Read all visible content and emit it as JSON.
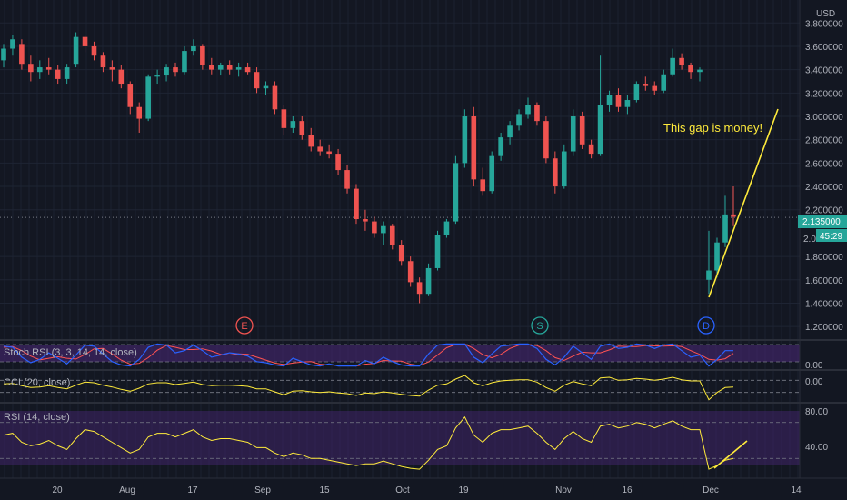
{
  "chart_data": {
    "type": "candlestick",
    "currency_label": "USD",
    "last_price_label": "2.135000",
    "countdown_label": "45:29",
    "partial_label": "2.0",
    "annotation": "This gap is money!",
    "colors": {
      "up": "#26a69a",
      "down": "#ef5350",
      "yellow": "#ffeb3b",
      "stoch_k": "#2962ff",
      "stoch_d": "#ff5252",
      "band_fill": "#4a2878",
      "background": "#131722"
    },
    "price_axis": {
      "ylim": [
        1.1,
        3.95
      ],
      "ticks": [
        "3.800000",
        "3.600000",
        "3.400000",
        "3.200000",
        "3.000000",
        "2.800000",
        "2.600000",
        "2.400000",
        "2.200000",
        "1.800000",
        "1.600000",
        "1.400000",
        "1.200000"
      ]
    },
    "x_axis": {
      "labels": [
        "20",
        "Aug",
        "17",
        "Sep",
        "15",
        "Oct",
        "19",
        "Nov",
        "16",
        "Dec",
        "14"
      ]
    },
    "event_markers": [
      "E",
      "S",
      "D"
    ],
    "ohlc": [
      [
        3.48,
        3.62,
        3.42,
        3.58
      ],
      [
        3.58,
        3.7,
        3.52,
        3.66
      ],
      [
        3.62,
        3.66,
        3.4,
        3.45
      ],
      [
        3.45,
        3.52,
        3.3,
        3.38
      ],
      [
        3.38,
        3.48,
        3.32,
        3.42
      ],
      [
        3.42,
        3.5,
        3.36,
        3.4
      ],
      [
        3.4,
        3.44,
        3.28,
        3.32
      ],
      [
        3.32,
        3.45,
        3.28,
        3.42
      ],
      [
        3.45,
        3.72,
        3.42,
        3.68
      ],
      [
        3.68,
        3.7,
        3.55,
        3.6
      ],
      [
        3.6,
        3.64,
        3.48,
        3.52
      ],
      [
        3.52,
        3.55,
        3.38,
        3.42
      ],
      [
        3.42,
        3.48,
        3.3,
        3.4
      ],
      [
        3.4,
        3.44,
        3.24,
        3.28
      ],
      [
        3.28,
        3.3,
        3.02,
        3.08
      ],
      [
        3.08,
        3.12,
        2.86,
        2.98
      ],
      [
        2.98,
        3.36,
        2.96,
        3.34
      ],
      [
        3.34,
        3.4,
        3.28,
        3.35
      ],
      [
        3.35,
        3.45,
        3.3,
        3.42
      ],
      [
        3.42,
        3.46,
        3.34,
        3.38
      ],
      [
        3.38,
        3.6,
        3.36,
        3.56
      ],
      [
        3.56,
        3.66,
        3.52,
        3.6
      ],
      [
        3.6,
        3.62,
        3.4,
        3.44
      ],
      [
        3.44,
        3.5,
        3.36,
        3.4
      ],
      [
        3.4,
        3.46,
        3.35,
        3.44
      ],
      [
        3.44,
        3.48,
        3.36,
        3.4
      ],
      [
        3.4,
        3.46,
        3.34,
        3.42
      ],
      [
        3.42,
        3.46,
        3.36,
        3.38
      ],
      [
        3.38,
        3.42,
        3.2,
        3.24
      ],
      [
        3.24,
        3.3,
        3.18,
        3.26
      ],
      [
        3.26,
        3.3,
        3.02,
        3.06
      ],
      [
        3.06,
        3.1,
        2.84,
        2.9
      ],
      [
        2.9,
        3.0,
        2.86,
        2.96
      ],
      [
        2.96,
        3.0,
        2.8,
        2.84
      ],
      [
        2.84,
        2.9,
        2.7,
        2.74
      ],
      [
        2.74,
        2.8,
        2.66,
        2.7
      ],
      [
        2.7,
        2.76,
        2.64,
        2.68
      ],
      [
        2.68,
        2.72,
        2.5,
        2.54
      ],
      [
        2.54,
        2.58,
        2.34,
        2.38
      ],
      [
        2.38,
        2.42,
        2.08,
        2.12
      ],
      [
        2.12,
        2.2,
        2.02,
        2.1
      ],
      [
        2.1,
        2.14,
        1.96,
        2.0
      ],
      [
        2.0,
        2.1,
        1.9,
        2.06
      ],
      [
        2.06,
        2.08,
        1.86,
        1.9
      ],
      [
        1.9,
        1.94,
        1.72,
        1.76
      ],
      [
        1.76,
        1.8,
        1.54,
        1.58
      ],
      [
        1.58,
        1.62,
        1.4,
        1.48
      ],
      [
        1.48,
        1.74,
        1.46,
        1.7
      ],
      [
        1.7,
        2.02,
        1.68,
        1.98
      ],
      [
        1.98,
        2.12,
        1.96,
        2.1
      ],
      [
        2.1,
        2.66,
        2.08,
        2.6
      ],
      [
        2.6,
        3.06,
        2.56,
        3.0
      ],
      [
        3.0,
        3.08,
        2.4,
        2.46
      ],
      [
        2.46,
        2.56,
        2.32,
        2.36
      ],
      [
        2.36,
        2.7,
        2.34,
        2.66
      ],
      [
        2.66,
        2.86,
        2.62,
        2.82
      ],
      [
        2.82,
        2.96,
        2.76,
        2.92
      ],
      [
        2.92,
        3.06,
        2.88,
        3.02
      ],
      [
        3.02,
        3.16,
        2.98,
        3.1
      ],
      [
        3.1,
        3.12,
        2.92,
        2.96
      ],
      [
        2.96,
        3.0,
        2.6,
        2.64
      ],
      [
        2.64,
        2.7,
        2.34,
        2.4
      ],
      [
        2.4,
        2.76,
        2.38,
        2.7
      ],
      [
        2.7,
        3.06,
        2.66,
        3.0
      ],
      [
        3.0,
        3.04,
        2.72,
        2.76
      ],
      [
        2.76,
        2.8,
        2.64,
        2.68
      ],
      [
        2.68,
        3.52,
        2.66,
        3.1
      ],
      [
        3.1,
        3.22,
        3.04,
        3.18
      ],
      [
        3.18,
        3.24,
        3.04,
        3.08
      ],
      [
        3.08,
        3.18,
        3.02,
        3.14
      ],
      [
        3.14,
        3.3,
        3.12,
        3.28
      ],
      [
        3.28,
        3.34,
        3.22,
        3.26
      ],
      [
        3.26,
        3.3,
        3.18,
        3.22
      ],
      [
        3.22,
        3.4,
        3.2,
        3.36
      ],
      [
        3.36,
        3.58,
        3.34,
        3.5
      ],
      [
        3.5,
        3.54,
        3.4,
        3.44
      ],
      [
        3.44,
        3.46,
        3.32,
        3.38
      ],
      [
        3.38,
        3.42,
        3.3,
        3.4
      ],
      [
        1.6,
        2.02,
        1.48,
        1.68
      ],
      [
        1.68,
        1.96,
        1.62,
        1.92
      ],
      [
        1.92,
        2.32,
        1.88,
        2.16
      ],
      [
        2.16,
        2.4,
        2.06,
        2.14
      ]
    ]
  },
  "indicators": {
    "stoch_rsi": {
      "title": "Stoch RSI (3, 3, 14, 14, close)",
      "ylim": [
        -0.1,
        1.1
      ],
      "ticks": [
        "0.00"
      ],
      "k": [
        0.9,
        0.85,
        0.4,
        0.15,
        0.3,
        0.6,
        0.35,
        0.1,
        0.5,
        0.95,
        0.9,
        0.55,
        0.2,
        0.05,
        0.0,
        0.3,
        0.85,
        1.0,
        0.95,
        0.6,
        0.7,
        0.95,
        0.7,
        0.4,
        0.5,
        0.6,
        0.55,
        0.45,
        0.2,
        0.15,
        0.05,
        0.0,
        0.35,
        0.2,
        0.05,
        0.0,
        0.1,
        0.0,
        0.0,
        0.0,
        0.25,
        0.1,
        0.4,
        0.2,
        0.05,
        0.0,
        0.0,
        0.55,
        0.95,
        1.0,
        1.0,
        1.0,
        0.4,
        0.15,
        0.55,
        0.9,
        0.95,
        1.0,
        1.0,
        0.8,
        0.3,
        0.05,
        0.4,
        0.9,
        0.6,
        0.3,
        0.9,
        1.0,
        0.8,
        0.85,
        1.0,
        0.95,
        0.8,
        0.95,
        1.0,
        0.7,
        0.4,
        0.5,
        0.0,
        0.3,
        0.7,
        0.7
      ],
      "d": [
        0.85,
        0.88,
        0.7,
        0.45,
        0.28,
        0.35,
        0.42,
        0.35,
        0.32,
        0.52,
        0.78,
        0.8,
        0.55,
        0.27,
        0.08,
        0.12,
        0.38,
        0.72,
        0.93,
        0.85,
        0.75,
        0.75,
        0.78,
        0.68,
        0.53,
        0.5,
        0.55,
        0.53,
        0.4,
        0.27,
        0.13,
        0.07,
        0.13,
        0.18,
        0.2,
        0.08,
        0.05,
        0.03,
        0.03,
        0.0,
        0.08,
        0.12,
        0.25,
        0.23,
        0.22,
        0.08,
        0.02,
        0.18,
        0.5,
        0.83,
        0.98,
        1.0,
        0.8,
        0.52,
        0.37,
        0.53,
        0.8,
        0.95,
        0.98,
        0.93,
        0.7,
        0.38,
        0.25,
        0.45,
        0.63,
        0.6,
        0.6,
        0.73,
        0.9,
        0.88,
        0.88,
        0.93,
        0.92,
        0.9,
        0.92,
        0.88,
        0.7,
        0.53,
        0.3,
        0.27,
        0.33,
        0.57
      ]
    },
    "cci": {
      "title": "CCI (20, close)",
      "ylim": [
        -1.2,
        1.2
      ],
      "ticks": [
        "0.00"
      ],
      "levels": [
        0.5,
        -0.5
      ],
      "values": [
        0.2,
        0.25,
        0.05,
        -0.1,
        -0.05,
        0.05,
        -0.1,
        -0.2,
        0.1,
        0.35,
        0.3,
        0.1,
        -0.05,
        -0.25,
        -0.4,
        -0.15,
        0.2,
        0.3,
        0.3,
        0.15,
        0.25,
        0.35,
        0.15,
        0.05,
        0.1,
        0.1,
        0.05,
        0.0,
        -0.2,
        -0.2,
        -0.45,
        -0.7,
        -0.4,
        -0.35,
        -0.45,
        -0.5,
        -0.45,
        -0.55,
        -0.6,
        -0.75,
        -0.55,
        -0.6,
        -0.45,
        -0.55,
        -0.65,
        -0.75,
        -0.8,
        -0.3,
        0.1,
        0.2,
        0.6,
        0.9,
        0.3,
        0.05,
        0.3,
        0.45,
        0.5,
        0.55,
        0.55,
        0.35,
        -0.1,
        -0.4,
        0.1,
        0.4,
        0.2,
        0.05,
        0.7,
        0.75,
        0.5,
        0.55,
        0.65,
        0.6,
        0.5,
        0.6,
        0.75,
        0.55,
        0.45,
        0.45,
        -1.1,
        -0.5,
        -0.1,
        -0.05
      ]
    },
    "rsi": {
      "title": "RSI (14, close)",
      "ylim": [
        10,
        90
      ],
      "ticks": [
        "80.00",
        "40.00"
      ],
      "levels": [
        70,
        30
      ],
      "values": [
        56,
        58,
        48,
        44,
        46,
        50,
        44,
        40,
        52,
        62,
        60,
        54,
        48,
        42,
        36,
        40,
        54,
        58,
        58,
        54,
        58,
        62,
        54,
        50,
        52,
        52,
        50,
        48,
        42,
        42,
        36,
        32,
        36,
        34,
        30,
        30,
        28,
        26,
        24,
        22,
        24,
        24,
        27,
        24,
        21,
        19,
        18,
        28,
        40,
        44,
        64,
        76,
        56,
        48,
        58,
        62,
        62,
        64,
        66,
        58,
        48,
        40,
        52,
        60,
        52,
        48,
        66,
        68,
        64,
        66,
        70,
        68,
        64,
        68,
        72,
        66,
        62,
        62,
        18,
        22,
        28,
        30
      ]
    }
  }
}
